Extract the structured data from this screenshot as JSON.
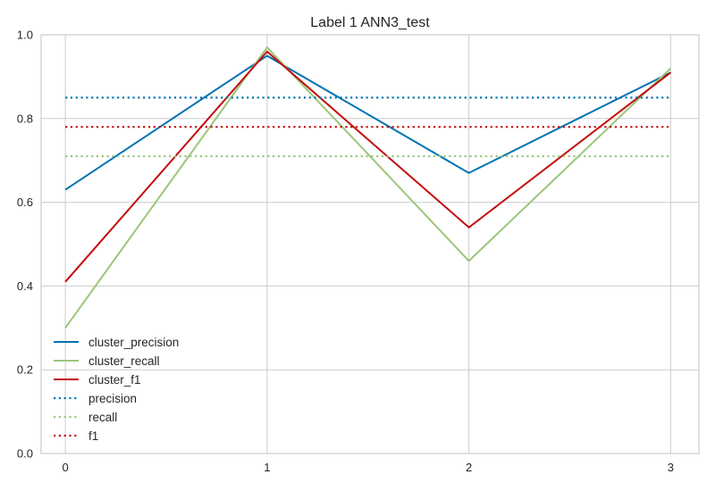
{
  "chart_data": {
    "type": "line",
    "title": "Label 1 ANN3_test",
    "xlabel": "",
    "ylabel": "",
    "x": [
      0,
      1,
      2,
      3
    ],
    "x_ticks": [
      "0",
      "1",
      "2",
      "3"
    ],
    "xlim": [
      -0.12,
      3.14
    ],
    "ylim": [
      0.0,
      1.0
    ],
    "y_ticks": [
      "0.0",
      "0.2",
      "0.4",
      "0.6",
      "0.8",
      "1.0"
    ],
    "grid": true,
    "legend_position": "lower-left",
    "series": [
      {
        "name": "cluster_precision",
        "style": "solid",
        "color": "#0072b2",
        "values": [
          0.63,
          0.95,
          0.67,
          0.91
        ]
      },
      {
        "name": "cluster_recall",
        "style": "solid",
        "color": "#9bc67a",
        "values": [
          0.3,
          0.97,
          0.46,
          0.92
        ]
      },
      {
        "name": "cluster_f1",
        "style": "solid",
        "color": "#c40a0a",
        "values": [
          0.41,
          0.96,
          0.54,
          0.91
        ]
      },
      {
        "name": "precision",
        "style": "dotted",
        "color": "#0072b2",
        "values": [
          0.85,
          0.85,
          0.85,
          0.85
        ]
      },
      {
        "name": "recall",
        "style": "dotted",
        "color": "#9bc67a",
        "values": [
          0.71,
          0.71,
          0.71,
          0.71
        ]
      },
      {
        "name": "f1",
        "style": "dotted",
        "color": "#c40a0a",
        "values": [
          0.78,
          0.78,
          0.78,
          0.78
        ]
      }
    ]
  }
}
